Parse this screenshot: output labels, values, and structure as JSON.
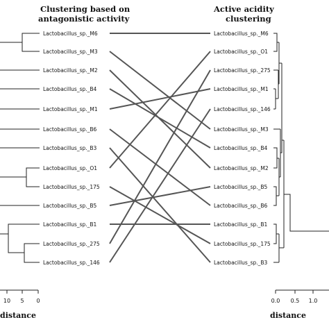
{
  "left_panel": {
    "title_line1": "Clustering based on",
    "title_line2": "antagonistic activity",
    "leaves": [
      "Lactobacillus_sp._M6",
      "Lactobacillus_sp._M3",
      "Lactobacillus_sp._M2",
      "Lactobacillus_sp._B4",
      "Lactobacillus_sp._M1",
      "Lactobacillus_sp._B6",
      "Lactobacillus_sp._B3",
      "Lactobacillus_sp._O1",
      "Lactobacillus_sp._175",
      "Lactobacillus_sp._B5",
      "Lactobacillus_sp._B1",
      "Lactobacillus_sp._275",
      "Lactobacillus_sp._146"
    ],
    "axis_ticks": [
      "10",
      "5",
      "0"
    ],
    "axis_label": "distance"
  },
  "right_panel": {
    "title_line1": "Active acidity",
    "title_line2": "clustering",
    "leaves": [
      "Lactobacillus_sp._M6",
      "Lactobacillus_sp._O1",
      "Lactobacillus_sp._275",
      "Lactobacillus_sp._M1",
      "Lactobacillus_sp._146",
      "Lactobacillus_sp._M3",
      "Lactobacillus_sp._B4",
      "Lactobacillus_sp._M2",
      "Lactobacillus_sp._B5",
      "Lactobacillus_sp._B6",
      "Lactobacillus_sp._B1",
      "Lactobacillus_sp._175",
      "Lactobacillus_sp._B3"
    ],
    "axis_ticks": [
      "0.0",
      "0.5",
      "1.0"
    ],
    "axis_label": "distance"
  },
  "colors": {
    "connector": "#555555",
    "tree": "#222222"
  }
}
